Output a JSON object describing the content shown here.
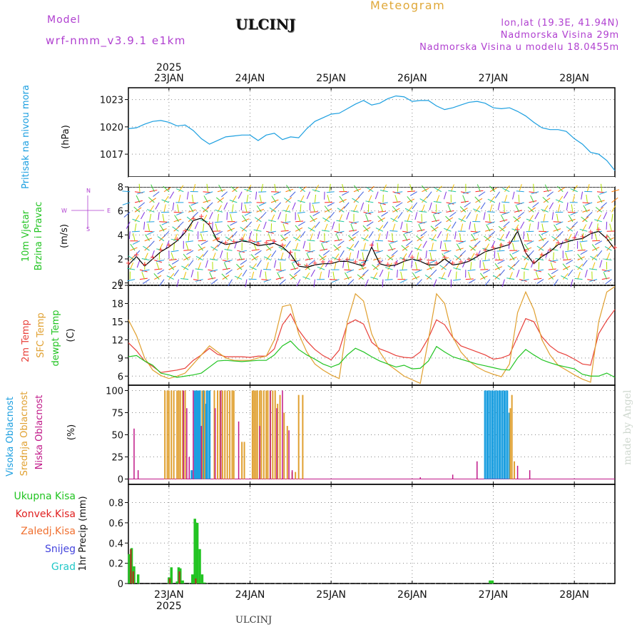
{
  "header": {
    "model_label": "Model",
    "model_name": "wrf-nmm_v3.9.1 e1km",
    "station": "ULCINJ",
    "product": "Meteogram",
    "lonlat": "lon,lat (19.3E, 41.94N)",
    "elevation": "Nadmorska Visina 29m",
    "model_elevation": "Nadmorska Visina u modelu 18.0455m"
  },
  "footer": {
    "station": "ULCINJ",
    "watermark": "made by Angel"
  },
  "colors": {
    "pressure": "#1c9fe0",
    "temp2m": "#e8403a",
    "sfc_temp": "#e0a030",
    "dewpt": "#22c422",
    "high_cloud": "#1c9fe0",
    "mid_cloud": "#e0a030",
    "low_cloud": "#c01888",
    "total_precip": "#22c422",
    "convective": "#e02020",
    "frozen": "#f07030",
    "snow": "#4444dd",
    "graupel": "#22c8c8"
  },
  "time_axis": {
    "year": "2025",
    "ticks": [
      "23JAN",
      "24JAN",
      "25JAN",
      "26JAN",
      "27JAN",
      "28JAN"
    ],
    "xlim": [
      22.5,
      28.5
    ]
  },
  "chart_data": [
    {
      "type": "line",
      "panel": "pressure",
      "ylabel_vertical": "Pritisak na nivou mora",
      "unit": "(hPa)",
      "yticks": [
        1017,
        1020,
        1023
      ],
      "ylim": [
        1014.5,
        1024.3
      ],
      "grid": true,
      "series": [
        {
          "x": [
            22.5,
            22.6,
            22.7,
            22.8,
            22.9,
            23.0,
            23.1,
            23.2,
            23.3,
            23.4,
            23.5,
            23.6,
            23.7,
            23.8,
            23.9,
            24.0,
            24.1,
            24.2,
            24.3,
            24.4,
            24.5,
            24.6,
            24.7,
            24.8,
            24.9,
            25.0,
            25.1,
            25.2,
            25.3,
            25.4,
            25.5,
            25.6,
            25.7,
            25.8,
            25.9,
            26.0,
            26.1,
            26.2,
            26.3,
            26.4,
            26.5,
            26.6,
            26.7,
            26.8,
            26.9,
            27.0,
            27.1,
            27.2,
            27.3,
            27.4,
            27.5,
            27.6,
            27.7,
            27.8,
            27.9,
            28.0,
            28.1,
            28.2,
            28.3,
            28.4,
            28.5
          ],
          "values": [
            1019.8,
            1019.9,
            1020.3,
            1020.6,
            1020.7,
            1020.5,
            1020.1,
            1020.2,
            1019.6,
            1018.7,
            1018.1,
            1018.5,
            1018.9,
            1019.0,
            1019.1,
            1019.1,
            1018.5,
            1019.1,
            1019.3,
            1018.6,
            1018.9,
            1018.8,
            1019.8,
            1020.6,
            1021.0,
            1021.4,
            1021.5,
            1022.0,
            1022.5,
            1022.9,
            1022.4,
            1022.6,
            1023.1,
            1023.4,
            1023.3,
            1022.8,
            1022.9,
            1022.9,
            1022.3,
            1021.9,
            1022.1,
            1022.4,
            1022.7,
            1022.8,
            1022.6,
            1022.1,
            1022.0,
            1022.1,
            1021.7,
            1021.2,
            1020.5,
            1019.9,
            1019.7,
            1019.7,
            1019.5,
            1018.7,
            1018.1,
            1017.2,
            1017.0,
            1016.3,
            1015.2
          ]
        }
      ]
    },
    {
      "type": "line",
      "panel": "wind",
      "ylabel_vertical": [
        "10m Vjetar",
        "Brzina i Pravac"
      ],
      "unit": "(m/s)",
      "compass_labels": [
        "N",
        "W",
        "E",
        "S"
      ],
      "yticks": [
        0,
        2,
        4,
        6,
        8
      ],
      "ylim": [
        -0.2,
        8
      ],
      "grid": true,
      "series": [
        {
          "name": "speed",
          "x": [
            22.5,
            22.6,
            22.7,
            22.8,
            22.9,
            23.0,
            23.1,
            23.2,
            23.3,
            23.4,
            23.5,
            23.6,
            23.7,
            23.8,
            23.9,
            24.0,
            24.1,
            24.2,
            24.3,
            24.4,
            24.5,
            24.6,
            24.7,
            24.8,
            24.9,
            25.0,
            25.1,
            25.2,
            25.3,
            25.4,
            25.5,
            25.6,
            25.7,
            25.8,
            25.9,
            26.0,
            26.1,
            26.2,
            26.3,
            26.4,
            26.5,
            26.6,
            26.7,
            26.8,
            26.9,
            27.0,
            27.1,
            27.2,
            27.3,
            27.4,
            27.5,
            27.6,
            27.7,
            27.8,
            27.9,
            28.0,
            28.1,
            28.2,
            28.3,
            28.4,
            28.5
          ],
          "values": [
            1.5,
            2.2,
            1.4,
            2.0,
            2.6,
            3.0,
            3.5,
            4.2,
            5.2,
            5.4,
            4.8,
            3.5,
            3.2,
            3.3,
            3.5,
            3.4,
            3.1,
            3.2,
            3.3,
            3.0,
            2.4,
            1.4,
            1.3,
            1.5,
            1.6,
            1.6,
            1.8,
            1.8,
            1.6,
            1.4,
            3.0,
            1.6,
            1.4,
            1.5,
            1.8,
            2.0,
            1.8,
            1.5,
            1.5,
            2.0,
            1.5,
            1.6,
            1.8,
            2.2,
            2.6,
            2.8,
            3.0,
            3.2,
            4.3,
            2.5,
            1.6,
            2.2,
            2.6,
            3.2,
            3.4,
            3.6,
            3.7,
            4.1,
            4.3,
            3.7,
            2.8
          ]
        }
      ]
    },
    {
      "type": "line",
      "panel": "temperature",
      "ylabel_vertical": [
        "2m Temp",
        "SFC Temp",
        "dewpt Temp"
      ],
      "unit": "(C)",
      "yticks": [
        6,
        9,
        12,
        15,
        18,
        21
      ],
      "ylim": [
        4.5,
        21
      ],
      "grid": true,
      "x": [
        22.5,
        22.6,
        22.7,
        22.8,
        22.9,
        23.0,
        23.1,
        23.2,
        23.3,
        23.4,
        23.5,
        23.6,
        23.7,
        23.8,
        23.9,
        24.0,
        24.1,
        24.2,
        24.3,
        24.4,
        24.5,
        24.6,
        24.7,
        24.8,
        24.9,
        25.0,
        25.1,
        25.2,
        25.3,
        25.4,
        25.5,
        25.6,
        25.7,
        25.8,
        25.9,
        26.0,
        26.1,
        26.2,
        26.3,
        26.4,
        26.5,
        26.6,
        26.7,
        26.8,
        26.9,
        27.0,
        27.1,
        27.2,
        27.3,
        27.4,
        27.5,
        27.6,
        27.7,
        27.8,
        27.9,
        28.0,
        28.1,
        28.2,
        28.3,
        28.4,
        28.5
      ],
      "series": [
        {
          "name": "2m Temp",
          "values": [
            11.5,
            10.2,
            8.5,
            7.6,
            6.6,
            6.8,
            7.0,
            7.3,
            8.6,
            9.5,
            10.6,
            9.6,
            9.2,
            9.2,
            9.2,
            9.1,
            9.3,
            9.3,
            10.5,
            14.5,
            16.3,
            13.6,
            11.8,
            10.4,
            9.4,
            8.7,
            10.3,
            14.6,
            15.3,
            14.6,
            11.6,
            10.5,
            10.0,
            9.4,
            9.1,
            9.0,
            10.0,
            12.3,
            15.3,
            14.5,
            12.4,
            11.0,
            10.5,
            10.0,
            9.5,
            8.8,
            9.0,
            9.5,
            12.5,
            15.5,
            15.0,
            12.5,
            11.0,
            10.0,
            9.5,
            8.8,
            8.0,
            7.8,
            13.0,
            15.2,
            17.0
          ]
        },
        {
          "name": "SFC Temp",
          "values": [
            15.3,
            12.7,
            9.0,
            7.0,
            6.1,
            5.6,
            6.0,
            6.5,
            8.0,
            9.5,
            11.0,
            10.0,
            9.0,
            8.6,
            8.6,
            8.6,
            9.0,
            9.3,
            12.0,
            17.5,
            17.8,
            13.0,
            10.0,
            8.0,
            7.0,
            6.2,
            5.6,
            15.0,
            19.6,
            18.4,
            13.0,
            10.0,
            8.0,
            7.0,
            6.0,
            5.4,
            4.8,
            12.0,
            19.6,
            18.0,
            12.5,
            10.0,
            8.5,
            7.5,
            6.8,
            6.3,
            5.9,
            8.0,
            16.5,
            19.9,
            17.0,
            12.0,
            9.5,
            7.8,
            7.0,
            6.2,
            5.5,
            5.0,
            15.0,
            19.9,
            20.8
          ]
        },
        {
          "name": "dewpt Temp",
          "values": [
            9.2,
            9.4,
            8.5,
            7.8,
            6.5,
            6.2,
            5.8,
            6.0,
            6.2,
            6.5,
            7.5,
            8.5,
            8.6,
            8.5,
            8.4,
            8.5,
            8.6,
            8.6,
            9.5,
            11.0,
            11.8,
            10.4,
            9.5,
            8.8,
            8.0,
            7.5,
            8.0,
            9.5,
            10.6,
            10.0,
            9.2,
            8.5,
            8.0,
            7.5,
            7.8,
            7.2,
            7.3,
            8.5,
            10.9,
            10.0,
            9.2,
            8.8,
            8.4,
            8.0,
            7.7,
            7.4,
            7.1,
            7.0,
            9.0,
            10.4,
            9.5,
            8.7,
            8.2,
            7.8,
            7.5,
            7.2,
            6.3,
            6.0,
            6.0,
            6.5,
            5.8
          ]
        }
      ]
    },
    {
      "type": "bar",
      "panel": "cloud",
      "ylabel_vertical": [
        "Visoka Oblacnost",
        "Srednja Oblacnost",
        "Niska Oblacnost"
      ],
      "unit": "(%)",
      "yticks": [
        0,
        25,
        50,
        75,
        100
      ],
      "ylim": [
        -6,
        106
      ],
      "grid": true,
      "series": [
        {
          "name": "Visoka Oblacnost",
          "x": [
            23.32,
            23.34,
            23.36,
            23.38,
            23.42,
            23.45,
            23.47,
            23.5,
            23.52,
            26.9,
            26.93,
            26.96,
            26.99,
            27.02,
            27.05,
            27.08,
            27.11,
            27.14,
            27.17,
            27.2,
            23.28
          ],
          "values": [
            100,
            100,
            100,
            100,
            100,
            85,
            100,
            100,
            0,
            100,
            100,
            100,
            100,
            100,
            100,
            100,
            100,
            100,
            100,
            75,
            10
          ]
        },
        {
          "name": "Srednja Oblacnost",
          "x": [
            22.95,
            22.98,
            23.0,
            23.03,
            23.06,
            23.1,
            23.12,
            23.14,
            23.17,
            23.2,
            23.41,
            23.44,
            23.56,
            23.6,
            23.63,
            23.66,
            23.69,
            23.72,
            23.75,
            23.78,
            23.8,
            23.9,
            23.93,
            24.03,
            24.05,
            24.07,
            24.09,
            24.12,
            24.14,
            24.17,
            24.2,
            24.22,
            24.25,
            24.28,
            24.31,
            24.34,
            24.37,
            24.42,
            24.46,
            24.52,
            24.56,
            24.6,
            24.65,
            27.21,
            27.23,
            27.26
          ],
          "values": [
            100,
            100,
            100,
            100,
            100,
            100,
            100,
            100,
            100,
            100,
            100,
            100,
            100,
            100,
            100,
            100,
            100,
            100,
            100,
            100,
            100,
            42,
            42,
            100,
            100,
            100,
            100,
            100,
            100,
            100,
            100,
            100,
            100,
            100,
            100,
            85,
            95,
            75,
            60,
            8,
            8,
            95,
            95,
            80,
            95,
            20
          ]
        },
        {
          "name": "Niska Oblacnost",
          "x": [
            22.57,
            22.62,
            23.18,
            23.22,
            23.25,
            23.3,
            23.4,
            23.57,
            23.64,
            23.86,
            24.12,
            24.25,
            24.33,
            24.4,
            24.48,
            24.52,
            26.1,
            26.5,
            26.8,
            27.3,
            27.45
          ],
          "values": [
            57,
            10,
            100,
            80,
            25,
            100,
            60,
            80,
            100,
            65,
            60,
            100,
            80,
            100,
            55,
            10,
            2,
            5,
            20,
            15,
            10
          ]
        }
      ]
    },
    {
      "type": "bar",
      "panel": "precip",
      "ylabel_vertical": "1hr Precip (mm)",
      "legend": [
        "Ukupna Kisa",
        "Konvek.Kisa",
        "Zaledj.Kisa",
        "Snijeg",
        "Grad"
      ],
      "yticks": [
        0,
        0.2,
        0.4,
        0.6,
        0.8
      ],
      "ylim": [
        0,
        0.98
      ],
      "grid": true,
      "series": [
        {
          "name": "Ukupna Kisa",
          "x": [
            22.51,
            22.54,
            22.57,
            22.62,
            23.0,
            23.03,
            23.1,
            23.12,
            23.14,
            23.17,
            23.29,
            23.32,
            23.35,
            23.38,
            23.41,
            23.44,
            26.96,
            26.99
          ],
          "values": [
            0.29,
            0.35,
            0.17,
            0.09,
            0.06,
            0.16,
            0.02,
            0.16,
            0.15,
            0.03,
            0.09,
            0.64,
            0.6,
            0.34,
            0.09,
            0.01,
            0.03,
            0.03
          ]
        },
        {
          "name": "Konvek.Kisa",
          "x": [
            22.53,
            22.56,
            23.01,
            23.13,
            23.33
          ],
          "values": [
            0.34,
            0.12,
            0.05,
            0.12,
            0.05
          ]
        }
      ]
    }
  ]
}
